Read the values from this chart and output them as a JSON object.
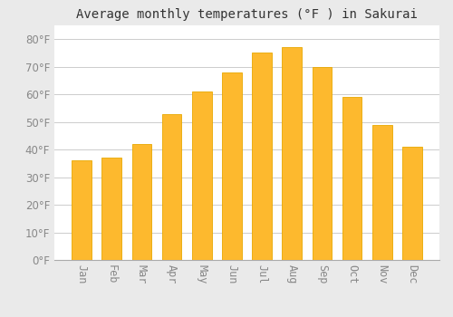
{
  "title": "Average monthly temperatures (°F ) in Sakurai",
  "months": [
    "Jan",
    "Feb",
    "Mar",
    "Apr",
    "May",
    "Jun",
    "Jul",
    "Aug",
    "Sep",
    "Oct",
    "Nov",
    "Dec"
  ],
  "temperatures": [
    36,
    37,
    42,
    53,
    61,
    68,
    75,
    77,
    70,
    59,
    49,
    41
  ],
  "bar_color": "#FDB92E",
  "bar_edge_color": "#E8A800",
  "background_color": "#EAEAEA",
  "plot_bg_color": "#FFFFFF",
  "grid_color": "#CCCCCC",
  "ylim": [
    0,
    85
  ],
  "yticks": [
    0,
    10,
    20,
    30,
    40,
    50,
    60,
    70,
    80
  ],
  "ylabel_suffix": "°F",
  "title_fontsize": 10,
  "tick_fontsize": 8.5,
  "bar_width": 0.65
}
